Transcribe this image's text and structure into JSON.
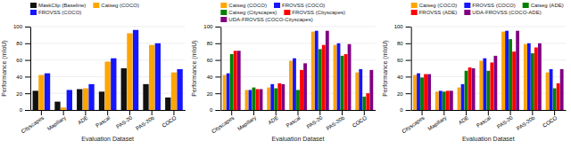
{
  "chart_data": [
    {
      "type": "bar",
      "xlabel": "Evaluation Dataset",
      "ylabel": "Performance (mIoU)",
      "categories": [
        "Cityscapes",
        "Mapillary",
        "ADE",
        "Pascal",
        "PAS-20",
        "PAS-20b",
        "COCO"
      ],
      "series": [
        {
          "name": "MaskClip (Baseline)",
          "color": "#111111",
          "values": [
            23,
            10,
            25,
            22,
            50,
            31,
            15
          ]
        },
        {
          "name": "Catseg (COCO)",
          "color": "#FFA500",
          "values": [
            42,
            3,
            26,
            58,
            92,
            78,
            45
          ]
        },
        {
          "name": "FROVSS (COCO)",
          "color": "#1515FF",
          "values": [
            44,
            24,
            31,
            62,
            96,
            80,
            49
          ]
        }
      ],
      "ylim": [
        0,
        100
      ],
      "yticks": [
        0,
        20,
        40,
        60,
        80,
        100
      ],
      "grid": true,
      "legend": "upper left"
    },
    {
      "type": "bar",
      "xlabel": "Evaluation Dataset",
      "ylabel": "Performance (mIoU)",
      "categories": [
        "Cityscapes",
        "Mapillary",
        "ADE",
        "Pascal",
        "PAS-20",
        "PAS-20b",
        "COCO"
      ],
      "series": [
        {
          "name": "Catseg (COCO)",
          "color": "#FFA500",
          "values": [
            42,
            24,
            27,
            59,
            94,
            78,
            45
          ]
        },
        {
          "name": "FROVSS (COCO)",
          "color": "#1515FF",
          "values": [
            44,
            24,
            31,
            62,
            95,
            80,
            49
          ]
        },
        {
          "name": "Catseg (Cityscapes)",
          "color": "#008000",
          "values": [
            67,
            27,
            26,
            24,
            73,
            65,
            16
          ]
        },
        {
          "name": "FROVSS (Cityscapes)",
          "color": "#FF0000",
          "values": [
            71,
            25,
            32,
            48,
            78,
            67,
            20
          ]
        },
        {
          "name": "UDA-FROVSS (COCO-Cityscapes)",
          "color": "#800080",
          "values": [
            71,
            25,
            31,
            56,
            95,
            79,
            48
          ]
        }
      ],
      "ylim": [
        0,
        100
      ],
      "yticks": [
        0,
        20,
        40,
        60,
        80,
        100
      ],
      "grid": true,
      "legend": "upper left"
    },
    {
      "type": "bar",
      "xlabel": "Evaluation Dataset",
      "ylabel": "Performance (mIoU)",
      "categories": [
        "Cityscapes",
        "Mapillary",
        "ADE",
        "Pascal",
        "PAS-20",
        "PAS-20b",
        "COCO"
      ],
      "series": [
        {
          "name": "Catseg (COCO)",
          "color": "#FFA500",
          "values": [
            42,
            22,
            27,
            59,
            94,
            79,
            45
          ]
        },
        {
          "name": "FROVSS (COCO)",
          "color": "#1515FF",
          "values": [
            44,
            23,
            31,
            62,
            95,
            80,
            49
          ]
        },
        {
          "name": "Catseg (ADE)",
          "color": "#008000",
          "values": [
            39,
            22,
            47,
            47,
            85,
            68,
            26
          ]
        },
        {
          "name": "FROVSS (ADE)",
          "color": "#FF0000",
          "values": [
            43,
            23,
            51,
            57,
            70,
            75,
            32
          ]
        },
        {
          "name": "UDA-FROVSS (COCO-ADE)",
          "color": "#800080",
          "values": [
            43,
            23,
            50,
            65,
            95,
            80,
            49
          ]
        }
      ],
      "ylim": [
        0,
        100
      ],
      "yticks": [
        0,
        20,
        40,
        60,
        80,
        100
      ],
      "grid": true,
      "legend": "upper left"
    }
  ]
}
